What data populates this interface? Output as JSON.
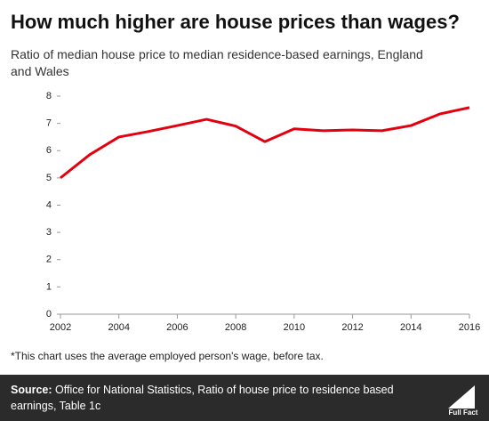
{
  "chart_data": {
    "type": "line",
    "title": "How much higher are house prices than wages?",
    "subtitle": "Ratio of median house price to median residence-based earnings, England and Wales",
    "footnote": "*This chart uses the average employed person's wage, before tax.",
    "source_label": "Source:",
    "source": "Office for National Statistics, Ratio of house price to residence based earnings, Table 1c",
    "logo": "Full Fact",
    "x": [
      2002,
      2003,
      2004,
      2005,
      2006,
      2007,
      2008,
      2009,
      2010,
      2011,
      2012,
      2013,
      2014,
      2015,
      2016
    ],
    "series": [
      {
        "name": "Ratio",
        "color": "#e3000f",
        "values": [
          5.0,
          5.85,
          6.5,
          6.7,
          6.92,
          7.15,
          6.9,
          6.33,
          6.8,
          6.73,
          6.76,
          6.73,
          6.92,
          7.35,
          7.58
        ]
      }
    ],
    "xlim": [
      2002,
      2016
    ],
    "xticks": [
      2002,
      2004,
      2006,
      2008,
      2010,
      2012,
      2014,
      2016
    ],
    "ylim": [
      0,
      8
    ],
    "yticks": [
      0,
      1,
      2,
      3,
      4,
      5,
      6,
      7,
      8
    ],
    "grid": false
  }
}
